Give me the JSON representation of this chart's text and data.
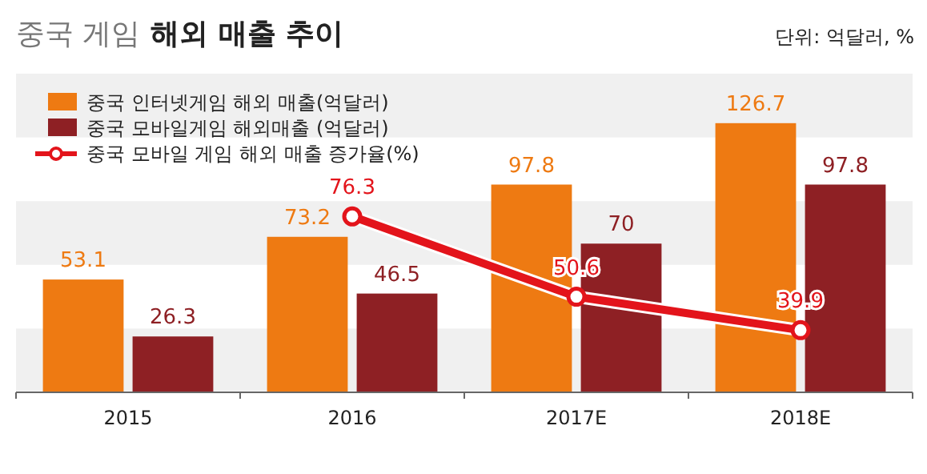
{
  "chart_data": {
    "type": "bar",
    "title": "중국 게임 해외 매출 추이",
    "annotations": [
      "단위: 억달러, %"
    ],
    "categories": [
      "2015",
      "2016",
      "2017E",
      "2018E"
    ],
    "series": [
      {
        "name": "중국 인터넷게임 해외 매출(억달러)",
        "color": "#ee7a12",
        "values": [
          53.1,
          73.2,
          97.8,
          126.7
        ]
      },
      {
        "name": "중국 모바일게임 해외매출 (억달러)",
        "color": "#8e2024",
        "values": [
          26.3,
          46.5,
          70,
          97.8
        ]
      },
      {
        "name": "중국 모바일 게임 해외 매출 증가율(%)",
        "type": "line",
        "axis": "y2",
        "color": "#e3141b",
        "marker": "circle",
        "values": [
          null,
          76.3,
          50.6,
          39.9
        ]
      }
    ],
    "ylim": [
      0,
      150
    ],
    "bands": [
      {
        "axis": "y",
        "from": 0,
        "to": 30,
        "color": "#f0f0f0"
      },
      {
        "axis": "y",
        "from": 60,
        "to": 90,
        "color": "#f0f0f0"
      },
      {
        "axis": "y",
        "from": 120,
        "to": 150,
        "color": "#f0f0f0"
      }
    ],
    "y2lim": [
      20,
      122
    ],
    "tick_labels": "x",
    "legend": "top left",
    "data_labels": true
  }
}
